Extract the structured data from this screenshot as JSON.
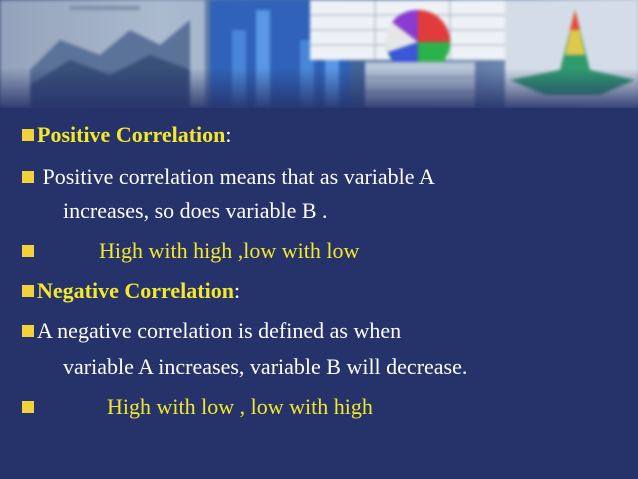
{
  "lines": {
    "l1_head": "Positive Correlation",
    "l1_colon": ":",
    "l2": " Positive correlation means that as variable A",
    "l3": "increases, so does variable B .",
    "l4": "High with high ,low with low",
    "l5_head": "Negative Correlation",
    "l5_colon": ":",
    "l6": "A negative correlation is defined as when",
    "l7": "variable A increases, variable B will decrease.",
    "l8": "High with low , low with high"
  }
}
